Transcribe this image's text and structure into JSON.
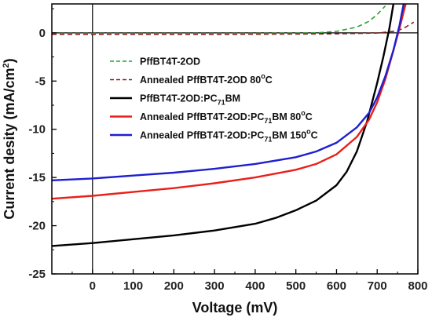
{
  "chart_data": {
    "type": "line",
    "xlabel": "Voltage (mV)",
    "ylabel": "Current desity (mA/cm",
    "ylabel_sup": "2",
    "ylabel_tail": ")",
    "xlim": [
      -100,
      800
    ],
    "ylim": [
      -25,
      3
    ],
    "xticks": [
      0,
      100,
      200,
      300,
      400,
      500,
      600,
      700,
      800
    ],
    "yticks": [
      0,
      -5,
      -10,
      -15,
      -20,
      -25
    ],
    "series": [
      {
        "name": "PffBT4T-2OD",
        "color": "#2ca02c",
        "dash": "dashed",
        "x": [
          -100,
          0,
          100,
          200,
          300,
          400,
          500,
          550,
          600,
          650,
          680,
          700,
          720
        ],
        "y": [
          -0.05,
          -0.05,
          -0.05,
          -0.05,
          -0.05,
          -0.05,
          -0.03,
          0.0,
          0.15,
          0.6,
          1.2,
          1.9,
          2.8
        ]
      },
      {
        "name": "Annealed PffBT4T-2OD 80°C",
        "color": "#8b1a1a",
        "dash": "dashed",
        "x": [
          -100,
          0,
          100,
          200,
          300,
          400,
          500,
          600,
          700,
          750,
          770,
          790
        ],
        "y": [
          -0.15,
          -0.15,
          -0.15,
          -0.15,
          -0.15,
          -0.14,
          -0.12,
          -0.1,
          -0.02,
          0.2,
          0.6,
          1.1
        ]
      },
      {
        "name": "PffBT4T-2OD:PC71BM",
        "color": "#000000",
        "dash": "solid",
        "x": [
          -100,
          0,
          100,
          200,
          300,
          400,
          450,
          500,
          550,
          600,
          625,
          650,
          675,
          700,
          715,
          730,
          740
        ],
        "y": [
          -22.1,
          -21.8,
          -21.4,
          -21.0,
          -20.5,
          -19.8,
          -19.2,
          -18.4,
          -17.4,
          -15.8,
          -14.4,
          -12.3,
          -9.2,
          -5.2,
          -2.5,
          0.5,
          3.0
        ]
      },
      {
        "name": "Annealed PffBT4T-2OD:PC71BM 80°C",
        "color": "#e8201a",
        "dash": "solid",
        "x": [
          -100,
          0,
          100,
          200,
          300,
          400,
          500,
          550,
          600,
          650,
          680,
          700,
          720,
          740,
          755,
          770
        ],
        "y": [
          -17.2,
          -16.9,
          -16.5,
          -16.1,
          -15.6,
          -15.0,
          -14.2,
          -13.6,
          -12.6,
          -10.8,
          -9.0,
          -7.2,
          -4.8,
          -1.8,
          0.5,
          3.0
        ]
      },
      {
        "name": "Annealed PffBT4T-2OD:PC71BM 150°C",
        "color": "#1f1fd0",
        "dash": "solid",
        "x": [
          -100,
          0,
          100,
          200,
          300,
          400,
          500,
          550,
          600,
          650,
          680,
          700,
          720,
          740,
          755,
          765
        ],
        "y": [
          -15.3,
          -15.1,
          -14.8,
          -14.5,
          -14.1,
          -13.6,
          -12.9,
          -12.3,
          -11.4,
          -9.8,
          -8.3,
          -6.7,
          -4.5,
          -1.8,
          0.8,
          3.0
        ]
      }
    ],
    "legend": {
      "placement": "center",
      "entries": [
        {
          "main": "PffBT4T-2OD",
          "sub": "",
          "tail": "",
          "sup": "",
          "end": ""
        },
        {
          "main": "Annealed PffBT4T-2OD 80",
          "sub": "",
          "tail": "",
          "sup": "o",
          "end": "C"
        },
        {
          "main": "PffBT4T-2OD:PC",
          "sub": "71",
          "tail": "BM",
          "sup": "",
          "end": ""
        },
        {
          "main": "Annealed PffBT4T-2OD:PC",
          "sub": "71",
          "tail": "BM 80",
          "sup": "o",
          "end": "C"
        },
        {
          "main": "Annealed PffBT4T-2OD:PC",
          "sub": "71",
          "tail": "BM 150",
          "sup": "o",
          "end": "C"
        }
      ]
    },
    "reference_lines": {
      "x0": true,
      "y0": true
    }
  }
}
